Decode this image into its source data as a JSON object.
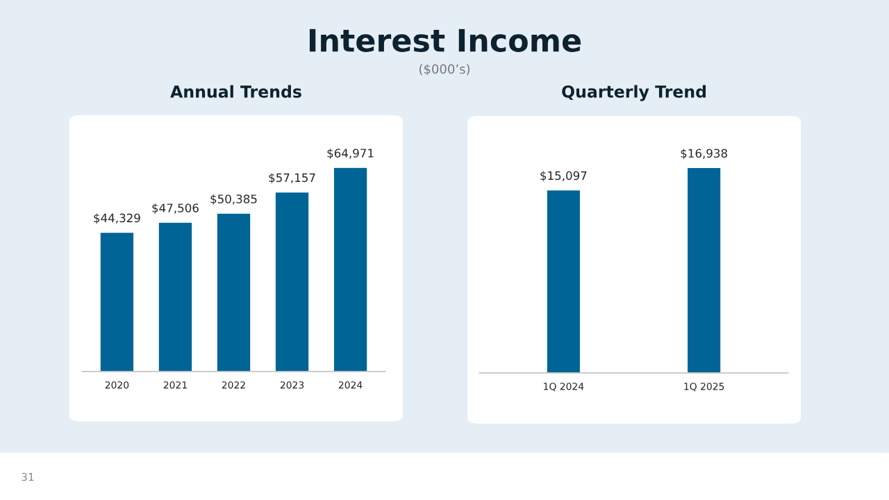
{
  "chart_data": [
    {
      "type": "other",
      "title": "Interest Income",
      "subtitle": "($000’s)",
      "annotations": [
        "31"
      ]
    },
    {
      "type": "bar",
      "title": "Annual Trends",
      "categories": [
        "2020",
        "2021",
        "2022",
        "2023",
        "2024"
      ],
      "values": [
        44329,
        47506,
        50385,
        57157,
        64971
      ],
      "value_labels": [
        "$44,329",
        "$47,506",
        "$50,385",
        "$57,157",
        "$64,971"
      ],
      "color": "#006496",
      "tick_labels": "x"
    },
    {
      "type": "bar",
      "title": "Quarterly Trend",
      "categories": [
        "1Q 2024",
        "1Q 2025"
      ],
      "values": [
        15097,
        16938
      ],
      "value_labels": [
        "$15,097",
        "$16,938"
      ],
      "color": "#006496",
      "tick_labels": "x"
    }
  ]
}
